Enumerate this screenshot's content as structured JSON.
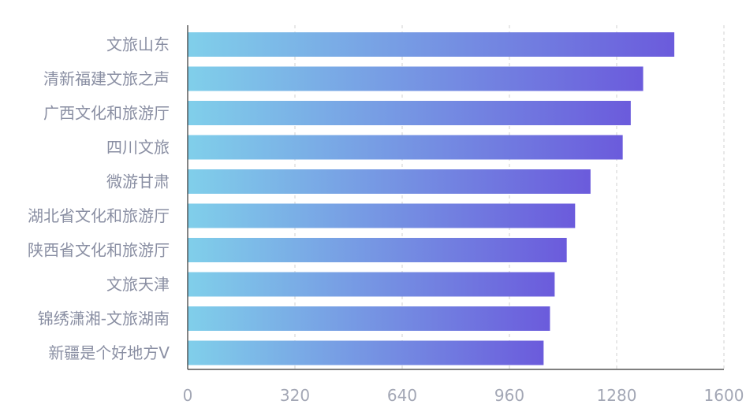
{
  "chart_data": {
    "type": "bar",
    "orientation": "horizontal",
    "title": "",
    "xlabel": "",
    "ylabel": "",
    "categories": [
      "文旅山东",
      "清新福建文旅之声",
      "广西文化和旅游厅",
      "四川文旅",
      "微游甘肃",
      "湖北省文化和旅游厅",
      "陕西省文化和旅游厅",
      "文旅天津",
      "锦绣潇湘-文旅湖南",
      "新疆是个好地方V"
    ],
    "values": [
      1452,
      1359,
      1322,
      1298,
      1202,
      1156,
      1131,
      1095,
      1081,
      1062
    ],
    "xlim": [
      0,
      1600
    ],
    "xticks": [
      "0",
      "320",
      "640",
      "960",
      "1280",
      "1600"
    ],
    "grid": "vertical dashed",
    "legend": "none",
    "colors": {
      "bar_start": "#80cfea",
      "bar_end": "#6b5bdc"
    }
  }
}
